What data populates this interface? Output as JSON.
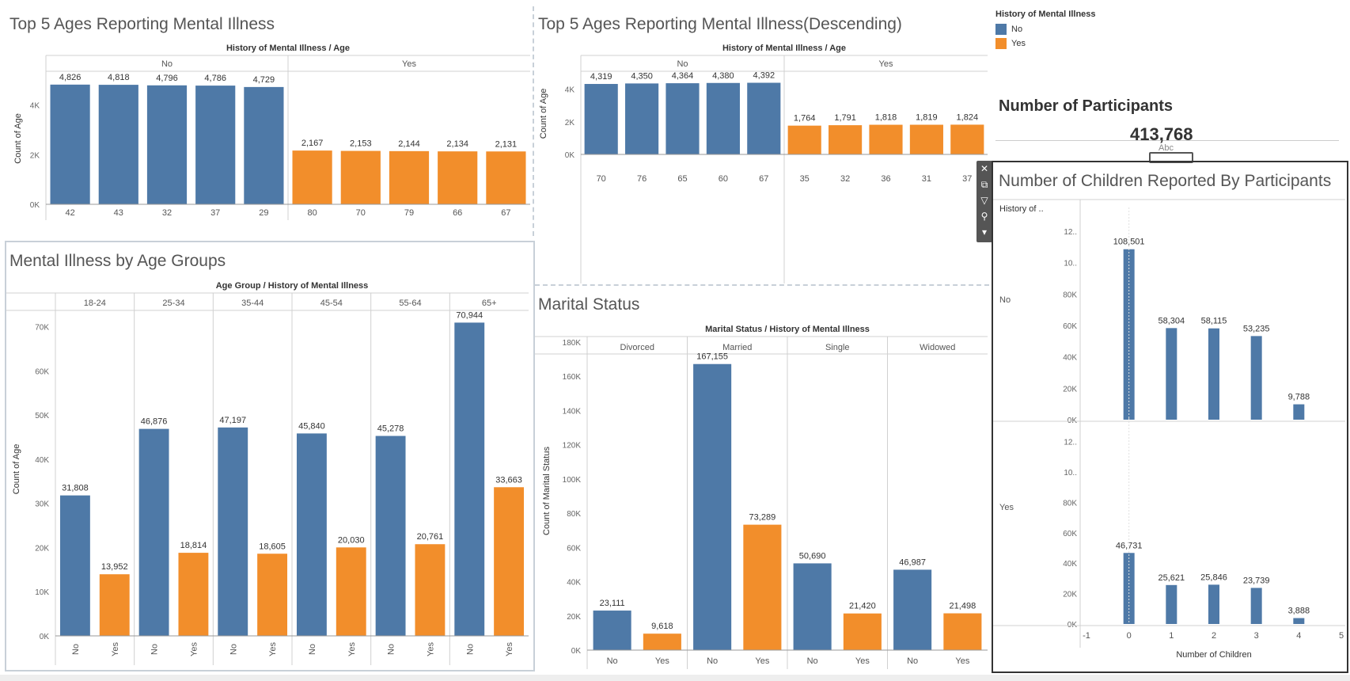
{
  "colors": {
    "no": "#4e79a7",
    "yes": "#f28e2b"
  },
  "legend": {
    "title": "History of Mental Illness",
    "items": [
      {
        "label": "No",
        "color": "#4e79a7"
      },
      {
        "label": "Yes",
        "color": "#f28e2b"
      }
    ]
  },
  "kpi": {
    "title": "Number of Participants",
    "value": "413,768",
    "sub": "Abc"
  },
  "toolbar": {
    "icons": [
      "close-icon",
      "popout-icon",
      "filter-icon",
      "pin-icon",
      "dropdown-icon"
    ]
  },
  "chart_data": [
    {
      "id": "top5",
      "type": "bar",
      "title": "Top 5 Ages Reporting Mental Illness",
      "header": "History of Mental Illness / Age",
      "ylabel": "Count of Age",
      "yticks": [
        "0K",
        "2K",
        "4K"
      ],
      "ylim": [
        0,
        5300
      ],
      "panels": [
        {
          "label": "No",
          "categories": [
            "42",
            "43",
            "32",
            "37",
            "29"
          ],
          "values": [
            4826,
            4818,
            4796,
            4786,
            4729
          ],
          "value_labels": [
            "4,826",
            "4,818",
            "4,796",
            "4,786",
            "4,729"
          ]
        },
        {
          "label": "Yes",
          "categories": [
            "80",
            "70",
            "79",
            "66",
            "67"
          ],
          "values": [
            2167,
            2153,
            2144,
            2134,
            2131
          ],
          "value_labels": [
            "2,167",
            "2,153",
            "2,144",
            "2,134",
            "2,131"
          ]
        }
      ]
    },
    {
      "id": "top5desc",
      "type": "bar",
      "title": "Top 5 Ages Reporting Mental Illness(Descending)",
      "header": "History of Mental Illness / Age",
      "ylabel": "Count of Age",
      "yticks": [
        "0K",
        "2K",
        "4K"
      ],
      "ylim": [
        0,
        5000
      ],
      "panels": [
        {
          "label": "No",
          "categories": [
            "70",
            "76",
            "65",
            "60",
            "67"
          ],
          "values": [
            4319,
            4350,
            4364,
            4380,
            4392
          ],
          "value_labels": [
            "4,319",
            "4,350",
            "4,364",
            "4,380",
            "4,392"
          ]
        },
        {
          "label": "Yes",
          "categories": [
            "35",
            "32",
            "36",
            "31",
            "37"
          ],
          "values": [
            1764,
            1791,
            1818,
            1819,
            1824
          ],
          "value_labels": [
            "1,764",
            "1,791",
            "1,818",
            "1,819",
            "1,824"
          ]
        }
      ]
    },
    {
      "id": "agegroups",
      "type": "bar",
      "title": "Mental Illness by Age Groups",
      "header": "Age Group / History of Mental Illness",
      "ylabel": "Count of Age",
      "yticks": [
        "0K",
        "10K",
        "20K",
        "30K",
        "40K",
        "50K",
        "60K",
        "70K"
      ],
      "ylim": [
        0,
        75500
      ],
      "groups": [
        {
          "label": "18-24",
          "categories": [
            "No",
            "Yes"
          ],
          "values": [
            31808,
            13952
          ],
          "value_labels": [
            "31,808",
            "13,952"
          ]
        },
        {
          "label": "25-34",
          "categories": [
            "No",
            "Yes"
          ],
          "values": [
            46876,
            18814
          ],
          "value_labels": [
            "46,876",
            "18,814"
          ]
        },
        {
          "label": "35-44",
          "categories": [
            "No",
            "Yes"
          ],
          "values": [
            47197,
            18605
          ],
          "value_labels": [
            "47,197",
            "18,605"
          ]
        },
        {
          "label": "45-54",
          "categories": [
            "No",
            "Yes"
          ],
          "values": [
            45840,
            20030
          ],
          "value_labels": [
            "45,840",
            "20,030"
          ]
        },
        {
          "label": "55-64",
          "categories": [
            "No",
            "Yes"
          ],
          "values": [
            45278,
            20761
          ],
          "value_labels": [
            "45,278",
            "20,761"
          ]
        },
        {
          "label": "65+",
          "categories": [
            "No",
            "Yes"
          ],
          "values": [
            70944,
            33663
          ],
          "value_labels": [
            "70,944",
            "33,663"
          ]
        }
      ]
    },
    {
      "id": "marital",
      "type": "bar",
      "title": "Marital Status",
      "header": "Marital Status / History of Mental Illness",
      "ylabel": "Count of Marital Status",
      "yticks": [
        "0K",
        "20K",
        "40K",
        "60K",
        "80K",
        "100K",
        "120K",
        "140K",
        "160K",
        "180K"
      ],
      "ylim": [
        0,
        186000
      ],
      "groups": [
        {
          "label": "Divorced",
          "categories": [
            "No",
            "Yes"
          ],
          "values": [
            23111,
            9618
          ],
          "value_labels": [
            "23,111",
            "9,618"
          ]
        },
        {
          "label": "Married",
          "categories": [
            "No",
            "Yes"
          ],
          "values": [
            167155,
            73289
          ],
          "value_labels": [
            "167,155",
            "73,289"
          ]
        },
        {
          "label": "Single",
          "categories": [
            "No",
            "Yes"
          ],
          "values": [
            50690,
            21420
          ],
          "value_labels": [
            "50,690",
            "21,420"
          ]
        },
        {
          "label": "Widowed",
          "categories": [
            "No",
            "Yes"
          ],
          "values": [
            46987,
            21498
          ],
          "value_labels": [
            "46,987",
            "21,498"
          ]
        }
      ]
    },
    {
      "id": "children",
      "type": "bar",
      "title": "Number of Children Reported By Participants",
      "row_header": "History of ..",
      "xlabel": "Number of Children",
      "xticks": [
        "-1",
        "0",
        "1",
        "2",
        "3",
        "4",
        "5"
      ],
      "xlim": [
        -1,
        5
      ],
      "yticks": [
        "0K",
        "20K",
        "40K",
        "60K",
        "80K",
        "10..",
        "12.."
      ],
      "ylim": [
        0,
        125000
      ],
      "rows": [
        {
          "label": "No",
          "x": [
            0,
            1,
            2,
            3,
            4
          ],
          "values": [
            108501,
            58304,
            58115,
            53235,
            9788
          ],
          "value_labels": [
            "108,501",
            "58,304",
            "58,115",
            "53,235",
            "9,788"
          ]
        },
        {
          "label": "Yes",
          "x": [
            0,
            1,
            2,
            3,
            4
          ],
          "values": [
            46731,
            25621,
            25846,
            23739,
            3888
          ],
          "value_labels": [
            "46,731",
            "25,621",
            "25,846",
            "23,739",
            "3,888"
          ]
        }
      ]
    }
  ]
}
